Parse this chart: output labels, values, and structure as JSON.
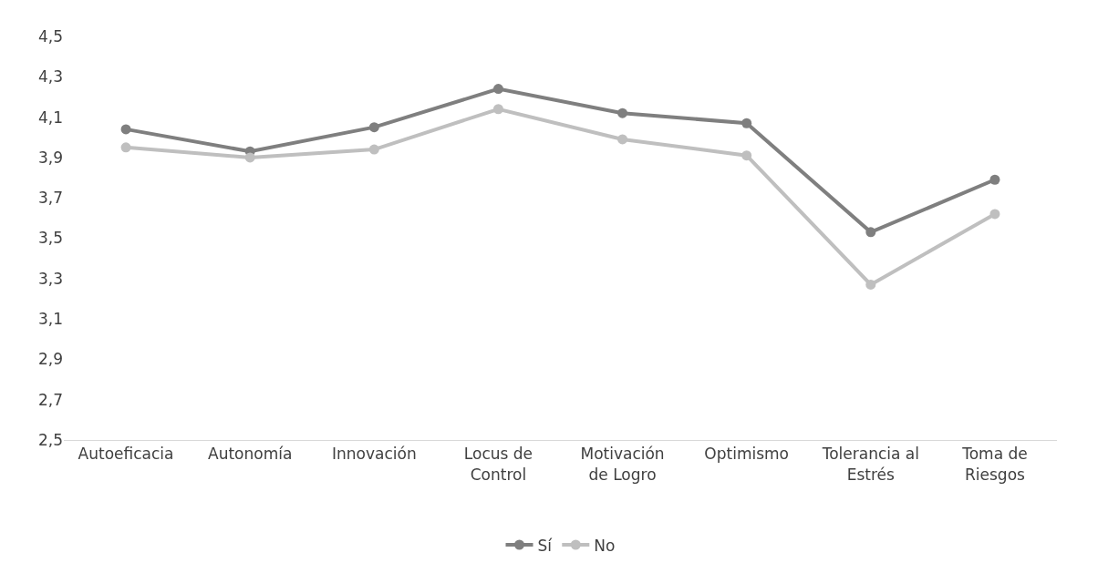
{
  "chart_data": {
    "type": "line",
    "categories": [
      "Autoeficacia",
      "Autonomía",
      "Innovación",
      "Locus de\nControl",
      "Motivación\nde Logro",
      "Optimismo",
      "Tolerancia al\nEstrés",
      "Toma de\nRiesgos"
    ],
    "series": [
      {
        "name": "Sí",
        "color": "#7f7f7f",
        "values": [
          4.04,
          3.93,
          4.05,
          4.24,
          4.12,
          4.07,
          3.53,
          3.79
        ]
      },
      {
        "name": "No",
        "color": "#bfbfbf",
        "values": [
          3.95,
          3.9,
          3.94,
          4.14,
          3.99,
          3.91,
          3.27,
          3.62
        ]
      }
    ],
    "ylim": [
      2.5,
      4.5
    ],
    "yticks": [
      {
        "value": 2.5,
        "label": "2,5"
      },
      {
        "value": 2.7,
        "label": "2,7"
      },
      {
        "value": 2.9,
        "label": "2,9"
      },
      {
        "value": 3.1,
        "label": "3,1"
      },
      {
        "value": 3.3,
        "label": "3,3"
      },
      {
        "value": 3.5,
        "label": "3,5"
      },
      {
        "value": 3.7,
        "label": "3,7"
      },
      {
        "value": 3.9,
        "label": "3,9"
      },
      {
        "value": 4.1,
        "label": "4,1"
      },
      {
        "value": 4.3,
        "label": "4,3"
      },
      {
        "value": 4.5,
        "label": "4,5"
      }
    ],
    "legend": "bottom",
    "marker": "circle",
    "line_style": "solid"
  }
}
